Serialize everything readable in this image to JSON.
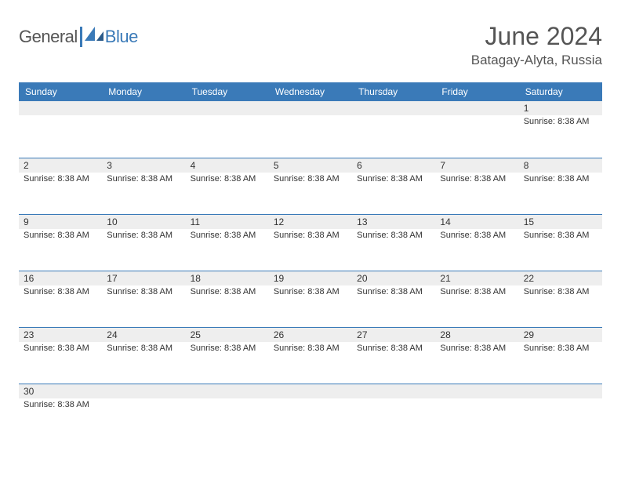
{
  "logo": {
    "text1": "General",
    "text2": "Blue"
  },
  "title": "June 2024",
  "location": "Batagay-Alyta, Russia",
  "colors": {
    "header_bg": "#3a7ab8",
    "row_alt_bg": "#eeeeee",
    "border": "#3a7ab8",
    "text": "#333333",
    "title_text": "#555555",
    "white": "#ffffff"
  },
  "weekdays": [
    "Sunday",
    "Monday",
    "Tuesday",
    "Wednesday",
    "Thursday",
    "Friday",
    "Saturday"
  ],
  "sunrise_label": "Sunrise: 8:38 AM",
  "weeks": [
    [
      null,
      null,
      null,
      null,
      null,
      null,
      {
        "n": "1",
        "s": "Sunrise: 8:38 AM"
      }
    ],
    [
      {
        "n": "2",
        "s": "Sunrise: 8:38 AM"
      },
      {
        "n": "3",
        "s": "Sunrise: 8:38 AM"
      },
      {
        "n": "4",
        "s": "Sunrise: 8:38 AM"
      },
      {
        "n": "5",
        "s": "Sunrise: 8:38 AM"
      },
      {
        "n": "6",
        "s": "Sunrise: 8:38 AM"
      },
      {
        "n": "7",
        "s": "Sunrise: 8:38 AM"
      },
      {
        "n": "8",
        "s": "Sunrise: 8:38 AM"
      }
    ],
    [
      {
        "n": "9",
        "s": "Sunrise: 8:38 AM"
      },
      {
        "n": "10",
        "s": "Sunrise: 8:38 AM"
      },
      {
        "n": "11",
        "s": "Sunrise: 8:38 AM"
      },
      {
        "n": "12",
        "s": "Sunrise: 8:38 AM"
      },
      {
        "n": "13",
        "s": "Sunrise: 8:38 AM"
      },
      {
        "n": "14",
        "s": "Sunrise: 8:38 AM"
      },
      {
        "n": "15",
        "s": "Sunrise: 8:38 AM"
      }
    ],
    [
      {
        "n": "16",
        "s": "Sunrise: 8:38 AM"
      },
      {
        "n": "17",
        "s": "Sunrise: 8:38 AM"
      },
      {
        "n": "18",
        "s": "Sunrise: 8:38 AM"
      },
      {
        "n": "19",
        "s": "Sunrise: 8:38 AM"
      },
      {
        "n": "20",
        "s": "Sunrise: 8:38 AM"
      },
      {
        "n": "21",
        "s": "Sunrise: 8:38 AM"
      },
      {
        "n": "22",
        "s": "Sunrise: 8:38 AM"
      }
    ],
    [
      {
        "n": "23",
        "s": "Sunrise: 8:38 AM"
      },
      {
        "n": "24",
        "s": "Sunrise: 8:38 AM"
      },
      {
        "n": "25",
        "s": "Sunrise: 8:38 AM"
      },
      {
        "n": "26",
        "s": "Sunrise: 8:38 AM"
      },
      {
        "n": "27",
        "s": "Sunrise: 8:38 AM"
      },
      {
        "n": "28",
        "s": "Sunrise: 8:38 AM"
      },
      {
        "n": "29",
        "s": "Sunrise: 8:38 AM"
      }
    ],
    [
      {
        "n": "30",
        "s": "Sunrise: 8:38 AM"
      },
      null,
      null,
      null,
      null,
      null,
      null
    ]
  ]
}
